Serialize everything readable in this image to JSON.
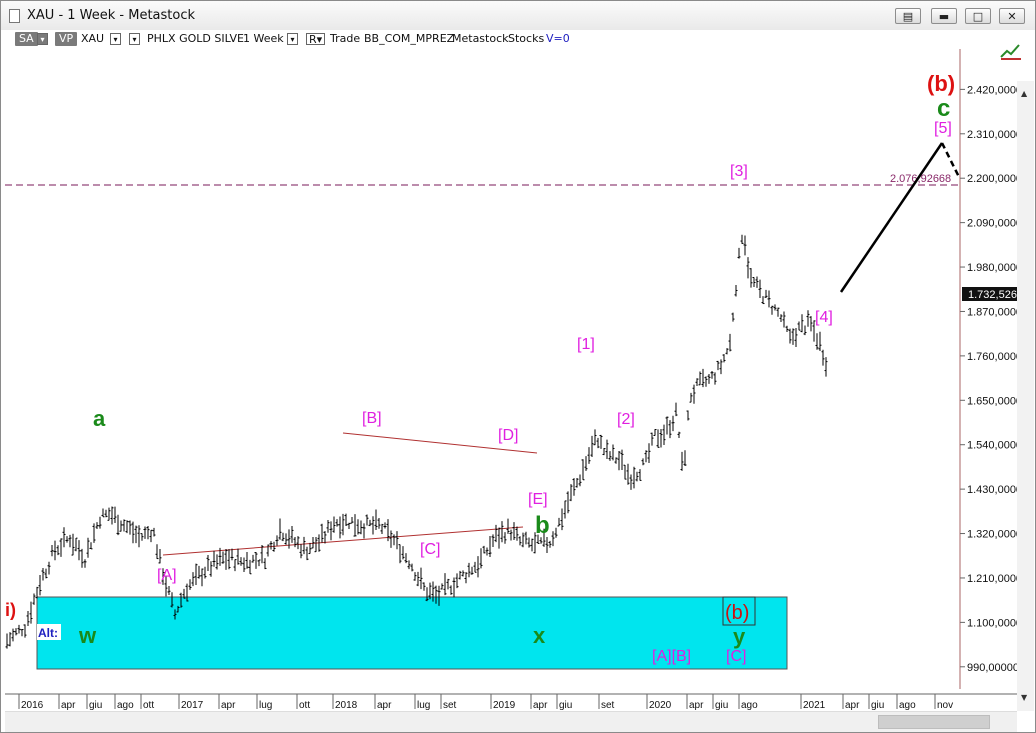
{
  "window": {
    "title": "XAU - 1 Week - Metastock",
    "controls": [
      "restore-down",
      "minimize",
      "maximize",
      "close"
    ]
  },
  "toolbar": {
    "sa": "SA",
    "vp": "VP",
    "symbol": "XAU",
    "name": "PHLX GOLD SILVE",
    "period": "1 Week",
    "r": "R",
    "trade": "Trade",
    "template": "BB_COM_MPREZ",
    "app": "Metastock",
    "category": "Stocks",
    "v": "V=0"
  },
  "colors": {
    "wave_magenta": "#e020e0",
    "wave_green": "#1a8a1a",
    "wave_red": "#dd1111",
    "alt_panel": "#00e5ee",
    "trendline": "#b03030",
    "hline": "#7a1a5a",
    "forecast": "#000000"
  },
  "price_axis": {
    "ticks": [
      "2.420,000000",
      "2.310,000000",
      "2.200,000000",
      "2.090,000000",
      "1.980,000000",
      "1.870,000000",
      "1.760,000000",
      "1.650,000000",
      "1.540,000000",
      "1.430,000000",
      "1.320,000000",
      "1.210,000000",
      "1.100,000000",
      "990,000000"
    ],
    "last_price": "1.732,52600",
    "level_label": "2.076,92668"
  },
  "time_axis": {
    "ticks": [
      "2016",
      "apr",
      "giu",
      "ago",
      "ott",
      "2017",
      "apr",
      "lug",
      "ott",
      "2018",
      "apr",
      "lug",
      "set",
      "2019",
      "apr",
      "giu",
      "set",
      "2020",
      "apr",
      "giu",
      "ago",
      "2021",
      "apr",
      "giu",
      "ago",
      "nov"
    ]
  },
  "labels": {
    "a": "a",
    "b": "b",
    "c": "c",
    "big_b": "(b)",
    "A": "[A]",
    "B": "[B]",
    "C": "[C]",
    "D": "[D]",
    "E": "[E]",
    "w1": "[1]",
    "w2": "[2]",
    "w3": "[3]",
    "w4": "[4]",
    "w5": "[5]",
    "left_edge": "i)"
  },
  "alt_panel": {
    "label": "Alt:",
    "w": "w",
    "x": "x",
    "y": "y",
    "b_boxed": "(b)",
    "AB": "[A][B]",
    "C": "[C]"
  },
  "chart_data": {
    "type": "bar",
    "title": "XAU - 1 Week",
    "series": [
      {
        "name": "XAU",
        "last": 1732.526
      }
    ],
    "ylim": [
      935,
      2520
    ],
    "horizontal_level": 2076.92668,
    "waves": [
      {
        "label": "a",
        "value": 1380
      },
      {
        "label": "[A]",
        "value": 1115
      },
      {
        "label": "[B]",
        "value": 1375
      },
      {
        "label": "[C]",
        "value": 1160
      },
      {
        "label": "[D]",
        "value": 1340
      },
      {
        "label": "[E]",
        "value": 1280
      },
      {
        "label": "[1]",
        "value": 1560
      },
      {
        "label": "[2]",
        "value": 1455
      },
      {
        "label": "[3]",
        "value": 2080
      },
      {
        "label": "[4]",
        "value": 1732
      }
    ],
    "forecast": [
      1732,
      2230,
      2090
    ]
  }
}
